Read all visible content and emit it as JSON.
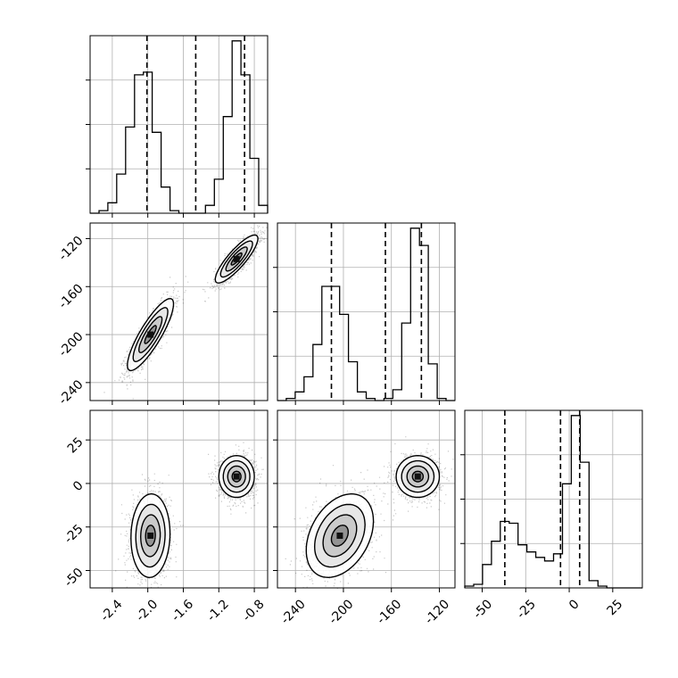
{
  "chart_data": {
    "type": "corner",
    "title": "",
    "grid": true,
    "parameters": [
      {
        "range": [
          -2.65,
          -0.65
        ],
        "ticks": [
          "-2.4",
          "-2.0",
          "-1.6",
          "-1.2",
          "-0.8"
        ],
        "tick_values": [
          -2.4,
          -2.0,
          -1.6,
          -1.2,
          -0.8
        ],
        "quantiles": [
          -2.01,
          -1.46,
          -0.91
        ]
      },
      {
        "range": [
          -255,
          -107
        ],
        "ticks": [
          "-240",
          "-200",
          "-160",
          "-120"
        ],
        "tick_values": [
          -240,
          -200,
          -160,
          -120
        ],
        "quantiles": [
          -210,
          -165,
          -135
        ]
      },
      {
        "range": [
          -60,
          42
        ],
        "ticks": [
          "-50",
          "-25",
          "0",
          "25"
        ],
        "tick_values": [
          -50,
          -25,
          0,
          25
        ],
        "quantiles": [
          -37,
          -5,
          6
        ]
      }
    ],
    "histograms": [
      {
        "bins": [
          -2.65,
          -2.55,
          -2.45,
          -2.35,
          -2.25,
          -2.15,
          -2.05,
          -1.95,
          -1.85,
          -1.75,
          -1.65,
          -1.55,
          -1.45,
          -1.35,
          -1.25,
          -1.15,
          -1.05,
          -0.95,
          -0.85,
          -0.75,
          -0.65
        ],
        "counts": [
          0,
          0.01,
          0.04,
          0.15,
          0.33,
          0.53,
          0.54,
          0.31,
          0.1,
          0.01,
          0,
          0,
          0,
          0.03,
          0.13,
          0.37,
          0.66,
          0.53,
          0.21,
          0.03
        ]
      },
      {
        "bins": [
          -255,
          -247.6,
          -240.2,
          -232.8,
          -225.4,
          -218,
          -210.6,
          -203.2,
          -195.8,
          -188.4,
          -181,
          -173.6,
          -166.2,
          -158.8,
          -151.4,
          -144,
          -136.6,
          -129.2,
          -121.8,
          -114.4,
          -107
        ],
        "counts": [
          0,
          0.01,
          0.04,
          0.11,
          0.26,
          0.53,
          0.53,
          0.4,
          0.18,
          0.04,
          0.01,
          0,
          0.01,
          0.05,
          0.36,
          0.8,
          0.72,
          0.17,
          0.01,
          0
        ]
      },
      {
        "bins": [
          -60,
          -54.9,
          -49.8,
          -44.7,
          -39.6,
          -34.5,
          -29.4,
          -24.3,
          -19.2,
          -14.1,
          -9,
          -3.9,
          1.2,
          6.3,
          11.4,
          16.5,
          21.6,
          26.7,
          31.8,
          36.9,
          42
        ],
        "counts": [
          0.01,
          0.02,
          0.13,
          0.26,
          0.37,
          0.36,
          0.24,
          0.2,
          0.17,
          0.15,
          0.19,
          0.58,
          0.96,
          0.7,
          0.04,
          0.01,
          0,
          0,
          0,
          0
        ]
      }
    ],
    "pairs": [
      {
        "x_param": 0,
        "y_param": 1,
        "clusters": [
          {
            "cx": -1.97,
            "cy": -200,
            "sx": 0.13,
            "sy": 15,
            "rho": 0.85
          },
          {
            "cx": -1.0,
            "cy": -137,
            "sx": 0.12,
            "sy": 10,
            "rho": 0.85
          }
        ]
      },
      {
        "x_param": 0,
        "y_param": 2,
        "clusters": [
          {
            "cx": -1.97,
            "cy": -30,
            "sx": 0.11,
            "sy": 12,
            "rho": 0.05
          },
          {
            "cx": -1.0,
            "cy": 4,
            "sx": 0.1,
            "sy": 6,
            "rho": 0.0
          }
        ]
      },
      {
        "x_param": 1,
        "y_param": 2,
        "clusters": [
          {
            "cx": -203,
            "cy": -30,
            "sx": 14,
            "sy": 12,
            "rho": 0.35
          },
          {
            "cx": -138,
            "cy": 4,
            "sx": 9,
            "sy": 6,
            "rho": 0.0
          }
        ]
      }
    ]
  }
}
